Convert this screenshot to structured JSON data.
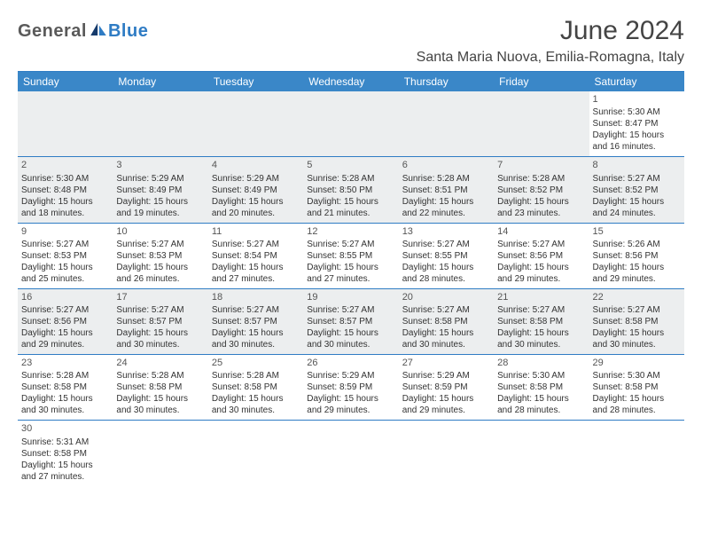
{
  "brand": {
    "part1": "General",
    "part2": "Blue"
  },
  "title": "June 2024",
  "location": "Santa Maria Nuova, Emilia-Romagna, Italy",
  "colors": {
    "header_bg": "#3a87c8",
    "header_text": "#ffffff",
    "border": "#2f7cc4",
    "alt_row": "#eceeef",
    "text": "#333333",
    "brand_gray": "#5a5a5a",
    "brand_blue": "#2f7cc4"
  },
  "weekdays": [
    "Sunday",
    "Monday",
    "Tuesday",
    "Wednesday",
    "Thursday",
    "Friday",
    "Saturday"
  ],
  "weeks": [
    [
      null,
      null,
      null,
      null,
      null,
      null,
      {
        "n": "1",
        "sr": "Sunrise: 5:30 AM",
        "ss": "Sunset: 8:47 PM",
        "d1": "Daylight: 15 hours",
        "d2": "and 16 minutes."
      }
    ],
    [
      {
        "n": "2",
        "sr": "Sunrise: 5:30 AM",
        "ss": "Sunset: 8:48 PM",
        "d1": "Daylight: 15 hours",
        "d2": "and 18 minutes."
      },
      {
        "n": "3",
        "sr": "Sunrise: 5:29 AM",
        "ss": "Sunset: 8:49 PM",
        "d1": "Daylight: 15 hours",
        "d2": "and 19 minutes."
      },
      {
        "n": "4",
        "sr": "Sunrise: 5:29 AM",
        "ss": "Sunset: 8:49 PM",
        "d1": "Daylight: 15 hours",
        "d2": "and 20 minutes."
      },
      {
        "n": "5",
        "sr": "Sunrise: 5:28 AM",
        "ss": "Sunset: 8:50 PM",
        "d1": "Daylight: 15 hours",
        "d2": "and 21 minutes."
      },
      {
        "n": "6",
        "sr": "Sunrise: 5:28 AM",
        "ss": "Sunset: 8:51 PM",
        "d1": "Daylight: 15 hours",
        "d2": "and 22 minutes."
      },
      {
        "n": "7",
        "sr": "Sunrise: 5:28 AM",
        "ss": "Sunset: 8:52 PM",
        "d1": "Daylight: 15 hours",
        "d2": "and 23 minutes."
      },
      {
        "n": "8",
        "sr": "Sunrise: 5:27 AM",
        "ss": "Sunset: 8:52 PM",
        "d1": "Daylight: 15 hours",
        "d2": "and 24 minutes."
      }
    ],
    [
      {
        "n": "9",
        "sr": "Sunrise: 5:27 AM",
        "ss": "Sunset: 8:53 PM",
        "d1": "Daylight: 15 hours",
        "d2": "and 25 minutes."
      },
      {
        "n": "10",
        "sr": "Sunrise: 5:27 AM",
        "ss": "Sunset: 8:53 PM",
        "d1": "Daylight: 15 hours",
        "d2": "and 26 minutes."
      },
      {
        "n": "11",
        "sr": "Sunrise: 5:27 AM",
        "ss": "Sunset: 8:54 PM",
        "d1": "Daylight: 15 hours",
        "d2": "and 27 minutes."
      },
      {
        "n": "12",
        "sr": "Sunrise: 5:27 AM",
        "ss": "Sunset: 8:55 PM",
        "d1": "Daylight: 15 hours",
        "d2": "and 27 minutes."
      },
      {
        "n": "13",
        "sr": "Sunrise: 5:27 AM",
        "ss": "Sunset: 8:55 PM",
        "d1": "Daylight: 15 hours",
        "d2": "and 28 minutes."
      },
      {
        "n": "14",
        "sr": "Sunrise: 5:27 AM",
        "ss": "Sunset: 8:56 PM",
        "d1": "Daylight: 15 hours",
        "d2": "and 29 minutes."
      },
      {
        "n": "15",
        "sr": "Sunrise: 5:26 AM",
        "ss": "Sunset: 8:56 PM",
        "d1": "Daylight: 15 hours",
        "d2": "and 29 minutes."
      }
    ],
    [
      {
        "n": "16",
        "sr": "Sunrise: 5:27 AM",
        "ss": "Sunset: 8:56 PM",
        "d1": "Daylight: 15 hours",
        "d2": "and 29 minutes."
      },
      {
        "n": "17",
        "sr": "Sunrise: 5:27 AM",
        "ss": "Sunset: 8:57 PM",
        "d1": "Daylight: 15 hours",
        "d2": "and 30 minutes."
      },
      {
        "n": "18",
        "sr": "Sunrise: 5:27 AM",
        "ss": "Sunset: 8:57 PM",
        "d1": "Daylight: 15 hours",
        "d2": "and 30 minutes."
      },
      {
        "n": "19",
        "sr": "Sunrise: 5:27 AM",
        "ss": "Sunset: 8:57 PM",
        "d1": "Daylight: 15 hours",
        "d2": "and 30 minutes."
      },
      {
        "n": "20",
        "sr": "Sunrise: 5:27 AM",
        "ss": "Sunset: 8:58 PM",
        "d1": "Daylight: 15 hours",
        "d2": "and 30 minutes."
      },
      {
        "n": "21",
        "sr": "Sunrise: 5:27 AM",
        "ss": "Sunset: 8:58 PM",
        "d1": "Daylight: 15 hours",
        "d2": "and 30 minutes."
      },
      {
        "n": "22",
        "sr": "Sunrise: 5:27 AM",
        "ss": "Sunset: 8:58 PM",
        "d1": "Daylight: 15 hours",
        "d2": "and 30 minutes."
      }
    ],
    [
      {
        "n": "23",
        "sr": "Sunrise: 5:28 AM",
        "ss": "Sunset: 8:58 PM",
        "d1": "Daylight: 15 hours",
        "d2": "and 30 minutes."
      },
      {
        "n": "24",
        "sr": "Sunrise: 5:28 AM",
        "ss": "Sunset: 8:58 PM",
        "d1": "Daylight: 15 hours",
        "d2": "and 30 minutes."
      },
      {
        "n": "25",
        "sr": "Sunrise: 5:28 AM",
        "ss": "Sunset: 8:58 PM",
        "d1": "Daylight: 15 hours",
        "d2": "and 30 minutes."
      },
      {
        "n": "26",
        "sr": "Sunrise: 5:29 AM",
        "ss": "Sunset: 8:59 PM",
        "d1": "Daylight: 15 hours",
        "d2": "and 29 minutes."
      },
      {
        "n": "27",
        "sr": "Sunrise: 5:29 AM",
        "ss": "Sunset: 8:59 PM",
        "d1": "Daylight: 15 hours",
        "d2": "and 29 minutes."
      },
      {
        "n": "28",
        "sr": "Sunrise: 5:30 AM",
        "ss": "Sunset: 8:58 PM",
        "d1": "Daylight: 15 hours",
        "d2": "and 28 minutes."
      },
      {
        "n": "29",
        "sr": "Sunrise: 5:30 AM",
        "ss": "Sunset: 8:58 PM",
        "d1": "Daylight: 15 hours",
        "d2": "and 28 minutes."
      }
    ],
    [
      {
        "n": "30",
        "sr": "Sunrise: 5:31 AM",
        "ss": "Sunset: 8:58 PM",
        "d1": "Daylight: 15 hours",
        "d2": "and 27 minutes."
      },
      null,
      null,
      null,
      null,
      null,
      null
    ]
  ]
}
